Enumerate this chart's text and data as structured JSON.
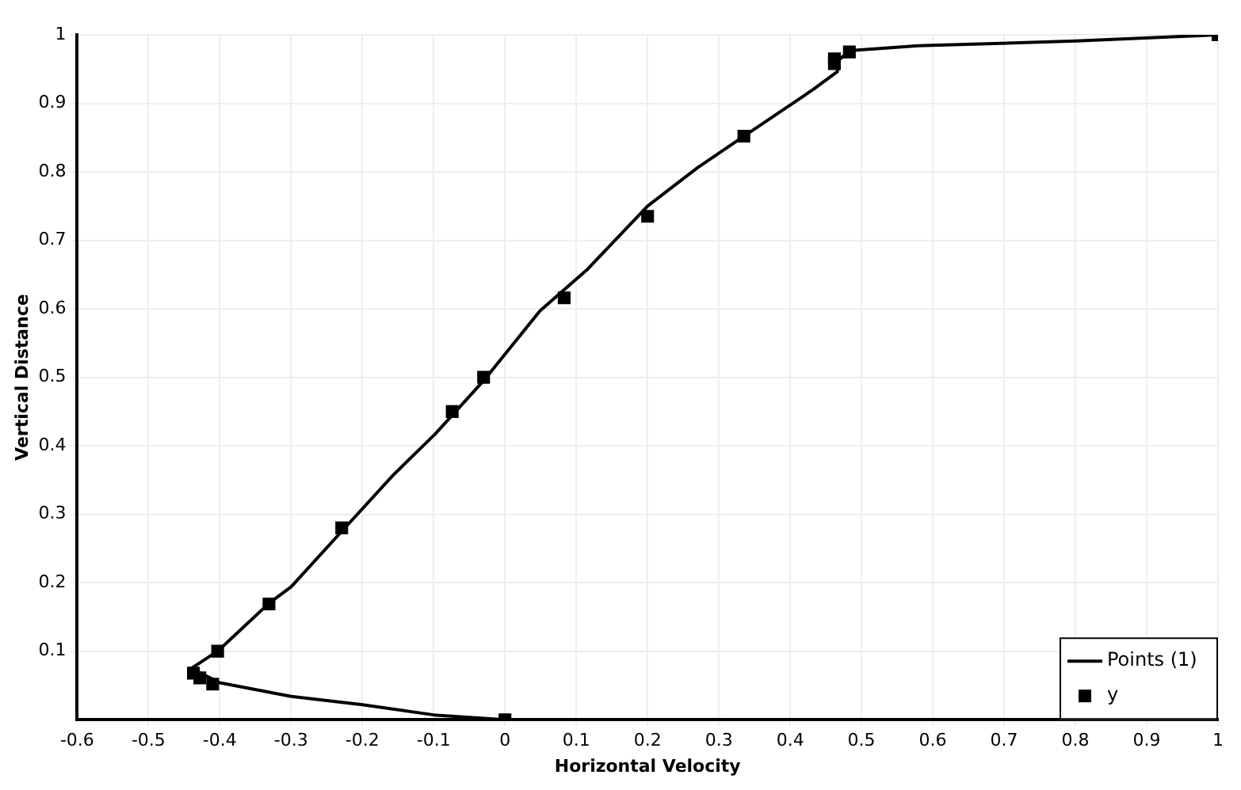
{
  "chart_data": {
    "type": "scatter",
    "xlabel": "Horizontal Velocity",
    "ylabel": "Vertical Distance",
    "xlim": [
      -0.6,
      1
    ],
    "ylim": [
      0,
      1
    ],
    "xticks": [
      -0.6,
      -0.5,
      -0.4,
      -0.3,
      -0.2,
      -0.1,
      0,
      0.1,
      0.2,
      0.3,
      0.4,
      0.5,
      0.6,
      0.7,
      0.8,
      0.9,
      1
    ],
    "yticks": [
      0.1,
      0.2,
      0.3,
      0.4,
      0.5,
      0.6,
      0.7,
      0.8,
      0.9,
      1
    ],
    "grid": true,
    "legend": "bottom right",
    "series": [
      {
        "name": "Points (1)",
        "type": "line",
        "color": "#000000",
        "marker": "none",
        "line_style": "solid",
        "x": [
          0,
          -0.1,
          -0.2,
          -0.3,
          -0.4,
          -0.44,
          -0.403,
          -0.331,
          -0.3,
          -0.229,
          -0.157,
          -0.098,
          -0.03,
          0.049,
          0.115,
          0.2,
          0.27,
          0.335,
          0.432,
          0.466,
          0.469,
          0.483,
          0.58,
          0.801,
          1
        ],
        "values": [
          0,
          0.007,
          0.022,
          0.034,
          0.054,
          0.075,
          0.1,
          0.17,
          0.194,
          0.275,
          0.357,
          0.417,
          0.495,
          0.597,
          0.657,
          0.75,
          0.806,
          0.852,
          0.92,
          0.946,
          0.964,
          0.977,
          0.984,
          0.991,
          1
        ]
      },
      {
        "name": "y",
        "type": "scatter",
        "color": "#000000",
        "marker": "square",
        "x": [
          0,
          -0.41,
          -0.428,
          -0.437,
          -0.403,
          -0.331,
          -0.229,
          -0.074,
          -0.03,
          0.083,
          0.2,
          0.335,
          0.462,
          0.462,
          0.483,
          1
        ],
        "values": [
          0,
          0.052,
          0.061,
          0.068,
          0.1,
          0.169,
          0.28,
          0.45,
          0.5,
          0.616,
          0.735,
          0.852,
          0.958,
          0.965,
          0.975,
          1
        ]
      }
    ]
  }
}
